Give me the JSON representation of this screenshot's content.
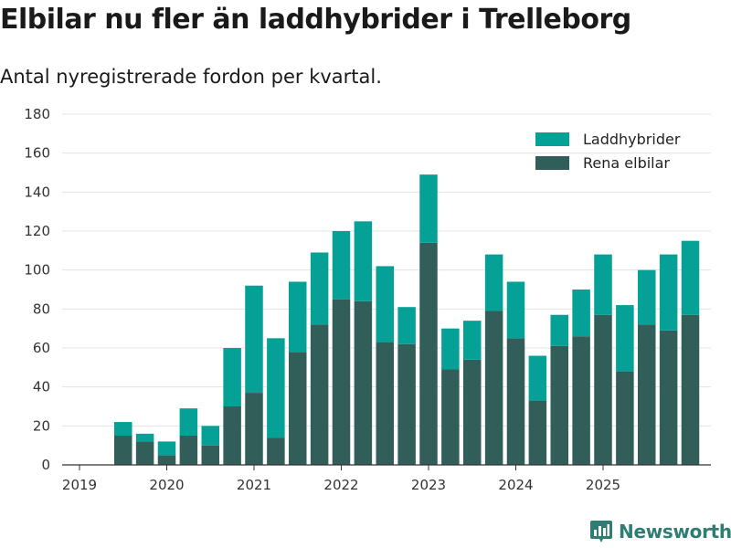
{
  "chart_data": {
    "type": "bar",
    "stacked": true,
    "title": "Elbilar nu fler än laddhybrider i Trelleborg",
    "subtitle": "Antal nyregistrerade fordon per kvartal.",
    "xlabel": "",
    "ylabel": "",
    "ylim": [
      0,
      180
    ],
    "yticks": [
      0,
      20,
      40,
      60,
      80,
      100,
      120,
      140,
      160,
      180
    ],
    "x_tick_labels": [
      "2019",
      "2020",
      "2021",
      "2022",
      "2023",
      "2024",
      "2025"
    ],
    "categories": [
      "2019 Q2",
      "2019 Q3",
      "2019 Q4",
      "2020 Q1",
      "2020 Q2",
      "2020 Q3",
      "2020 Q4",
      "2021 Q1",
      "2021 Q2",
      "2021 Q3",
      "2021 Q4",
      "2022 Q1",
      "2022 Q2",
      "2022 Q3",
      "2022 Q4",
      "2023 Q1",
      "2023 Q2",
      "2023 Q3",
      "2023 Q4",
      "2024 Q1",
      "2024 Q2",
      "2024 Q3",
      "2024 Q4",
      "2025 Q1",
      "2025 Q2",
      "2025 Q3",
      "2025 Q4"
    ],
    "series": [
      {
        "name": "Rena elbilar",
        "color": "#325e5a",
        "values": [
          15,
          12,
          5,
          15,
          10,
          30,
          37,
          14,
          58,
          72,
          85,
          84,
          63,
          62,
          114,
          49,
          54,
          79,
          65,
          33,
          61,
          66,
          77,
          48,
          72,
          69,
          77
        ]
      },
      {
        "name": "Laddhybrider",
        "color": "#06a196",
        "values": [
          7,
          4,
          7,
          14,
          10,
          30,
          55,
          51,
          36,
          37,
          35,
          41,
          39,
          19,
          35,
          21,
          20,
          29,
          29,
          23,
          16,
          24,
          31,
          34,
          28,
          39,
          38
        ]
      }
    ],
    "legend": {
      "position": "top-right",
      "order": [
        "Laddhybrider",
        "Rena elbilar"
      ]
    },
    "grid": true
  },
  "branding": {
    "name": "Newsworthy",
    "icon": "newsworthy-logo-icon"
  },
  "colors": {
    "grid": "#e3e3e3",
    "axis": "#333333",
    "brand": "#2e7d72"
  }
}
